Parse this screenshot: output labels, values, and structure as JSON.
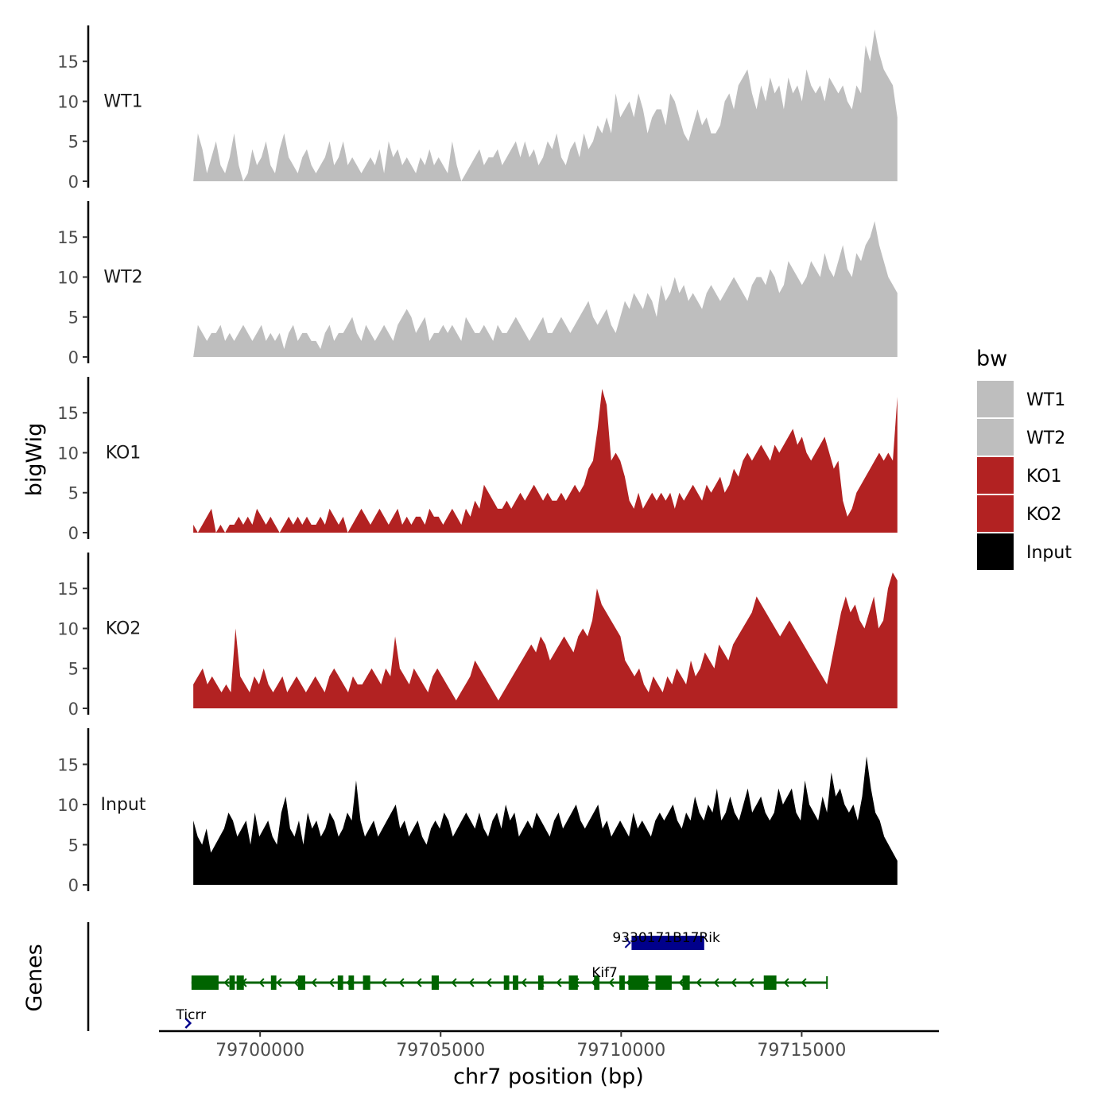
{
  "chart_data": {
    "type": "area",
    "ylabel": "bigWig",
    "genes_label": "Genes",
    "xlabel": "chr7 position (bp)",
    "xlim": [
      79697200,
      79718800
    ],
    "x_ticks": [
      79700000,
      79705000,
      79710000,
      79715000
    ],
    "x_tick_labels": [
      "79700000",
      "79705000",
      "79710000",
      "79715000"
    ],
    "ylim": [
      0,
      19.5
    ],
    "y_ticks": [
      0,
      5,
      10,
      15
    ],
    "y_tick_labels": [
      "0",
      "5",
      "10",
      "15"
    ],
    "signal_start": 79698150,
    "signal_end": 79717650,
    "legend": {
      "title": "bw",
      "position": "right",
      "entries": [
        {
          "label": "WT1",
          "color": "#bebebe"
        },
        {
          "label": "WT2",
          "color": "#bebebe"
        },
        {
          "label": "KO1",
          "color": "#b22222"
        },
        {
          "label": "KO2",
          "color": "#b22222"
        },
        {
          "label": "Input",
          "color": "#000000"
        }
      ]
    },
    "series": [
      {
        "name": "WT1",
        "color": "#bebebe",
        "values": [
          0,
          6,
          4,
          1,
          3,
          5,
          2,
          1,
          3,
          6,
          2,
          0,
          1,
          4,
          2,
          3,
          5,
          2,
          1,
          4,
          6,
          3,
          2,
          1,
          3,
          4,
          2,
          1,
          2,
          3,
          5,
          2,
          3,
          5,
          2,
          3,
          2,
          1,
          2,
          3,
          2,
          4,
          1,
          5,
          3,
          4,
          2,
          3,
          2,
          1,
          3,
          2,
          4,
          2,
          3,
          2,
          1,
          5,
          2,
          0,
          1,
          2,
          3,
          4,
          2,
          3,
          3,
          4,
          2,
          3,
          4,
          5,
          3,
          5,
          3,
          4,
          2,
          3,
          5,
          4,
          6,
          3,
          2,
          4,
          5,
          3,
          6,
          4,
          5,
          7,
          6,
          8,
          6,
          11,
          8,
          9,
          10,
          8,
          11,
          9,
          6,
          8,
          9,
          9,
          7,
          11,
          10,
          8,
          6,
          5,
          7,
          9,
          7,
          8,
          6,
          6,
          7,
          10,
          11,
          9,
          12,
          13,
          14,
          11,
          9,
          12,
          10,
          13,
          11,
          12,
          9,
          13,
          11,
          12,
          10,
          14,
          12,
          11,
          12,
          10,
          13,
          12,
          11,
          12,
          10,
          9,
          12,
          11,
          17,
          15,
          19,
          16,
          14,
          13,
          12,
          8
        ]
      },
      {
        "name": "WT2",
        "color": "#bebebe",
        "values": [
          0,
          4,
          3,
          2,
          3,
          3,
          4,
          2,
          3,
          2,
          3,
          4,
          3,
          2,
          3,
          4,
          2,
          3,
          2,
          3,
          1,
          3,
          4,
          2,
          3,
          3,
          2,
          2,
          1,
          3,
          4,
          2,
          3,
          3,
          4,
          5,
          3,
          2,
          4,
          3,
          2,
          3,
          4,
          3,
          2,
          4,
          5,
          6,
          5,
          3,
          4,
          5,
          2,
          3,
          3,
          4,
          3,
          4,
          3,
          2,
          5,
          4,
          3,
          3,
          4,
          3,
          2,
          4,
          3,
          3,
          4,
          5,
          4,
          3,
          2,
          3,
          4,
          5,
          3,
          3,
          4,
          5,
          4,
          3,
          4,
          5,
          6,
          7,
          5,
          4,
          5,
          6,
          4,
          3,
          5,
          7,
          6,
          8,
          7,
          6,
          8,
          7,
          5,
          9,
          7,
          8,
          10,
          8,
          9,
          7,
          8,
          7,
          6,
          8,
          9,
          8,
          7,
          8,
          9,
          10,
          9,
          8,
          7,
          9,
          10,
          10,
          9,
          11,
          10,
          8,
          9,
          12,
          11,
          10,
          9,
          10,
          12,
          11,
          10,
          13,
          11,
          10,
          12,
          14,
          11,
          10,
          13,
          12,
          14,
          15,
          17,
          14,
          12,
          10,
          9,
          8
        ]
      },
      {
        "name": "KO1",
        "color": "#b22222",
        "values": [
          1,
          0,
          1,
          2,
          3,
          0,
          1,
          0,
          1,
          1,
          2,
          1,
          2,
          1,
          3,
          2,
          1,
          2,
          1,
          0,
          1,
          2,
          1,
          2,
          1,
          2,
          1,
          1,
          2,
          1,
          3,
          2,
          1,
          2,
          0,
          1,
          2,
          3,
          2,
          1,
          2,
          3,
          2,
          1,
          2,
          3,
          1,
          2,
          1,
          2,
          2,
          1,
          3,
          2,
          2,
          1,
          2,
          3,
          2,
          1,
          3,
          2,
          4,
          3,
          6,
          5,
          4,
          3,
          3,
          4,
          3,
          4,
          5,
          4,
          5,
          6,
          5,
          4,
          5,
          4,
          4,
          5,
          4,
          5,
          6,
          5,
          6,
          8,
          9,
          13,
          18,
          16,
          9,
          10,
          9,
          7,
          4,
          3,
          5,
          3,
          4,
          5,
          4,
          5,
          4,
          5,
          3,
          5,
          4,
          5,
          6,
          5,
          4,
          6,
          5,
          6,
          7,
          5,
          6,
          8,
          7,
          9,
          10,
          9,
          10,
          11,
          10,
          9,
          11,
          10,
          11,
          12,
          13,
          11,
          12,
          10,
          9,
          10,
          11,
          12,
          10,
          8,
          9,
          4,
          2,
          3,
          5,
          6,
          7,
          8,
          9,
          10,
          9,
          10,
          9,
          17
        ]
      },
      {
        "name": "KO2",
        "color": "#b22222",
        "values": [
          3,
          4,
          5,
          3,
          4,
          3,
          2,
          3,
          2,
          10,
          4,
          3,
          2,
          4,
          3,
          5,
          3,
          2,
          3,
          4,
          2,
          3,
          4,
          3,
          2,
          3,
          4,
          3,
          2,
          4,
          5,
          4,
          3,
          2,
          4,
          3,
          3,
          4,
          5,
          4,
          3,
          5,
          4,
          9,
          5,
          4,
          3,
          5,
          4,
          3,
          2,
          4,
          5,
          4,
          3,
          2,
          1,
          2,
          3,
          4,
          6,
          5,
          4,
          3,
          2,
          1,
          2,
          3,
          4,
          5,
          6,
          7,
          8,
          7,
          9,
          8,
          6,
          7,
          8,
          9,
          8,
          7,
          9,
          10,
          9,
          11,
          15,
          13,
          12,
          11,
          10,
          9,
          6,
          5,
          4,
          5,
          3,
          2,
          4,
          3,
          2,
          4,
          3,
          5,
          4,
          3,
          6,
          4,
          5,
          7,
          6,
          5,
          8,
          7,
          6,
          8,
          9,
          10,
          11,
          12,
          14,
          13,
          12,
          11,
          10,
          9,
          10,
          11,
          10,
          9,
          8,
          7,
          6,
          5,
          4,
          3,
          6,
          9,
          12,
          14,
          12,
          13,
          11,
          10,
          12,
          14,
          10,
          11,
          15,
          17,
          16
        ]
      },
      {
        "name": "Input",
        "color": "#000000",
        "values": [
          8,
          6,
          5,
          7,
          4,
          5,
          6,
          7,
          9,
          8,
          6,
          7,
          8,
          5,
          9,
          6,
          7,
          8,
          6,
          5,
          9,
          11,
          7,
          6,
          8,
          5,
          9,
          7,
          8,
          6,
          7,
          9,
          8,
          6,
          7,
          9,
          8,
          13,
          8,
          6,
          7,
          8,
          6,
          7,
          8,
          9,
          10,
          7,
          8,
          6,
          7,
          8,
          6,
          5,
          7,
          8,
          7,
          9,
          8,
          6,
          7,
          8,
          9,
          8,
          7,
          9,
          7,
          6,
          8,
          9,
          7,
          10,
          8,
          9,
          6,
          7,
          8,
          7,
          9,
          8,
          7,
          6,
          8,
          9,
          7,
          8,
          9,
          10,
          8,
          7,
          8,
          9,
          10,
          7,
          8,
          6,
          7,
          8,
          7,
          6,
          9,
          7,
          8,
          7,
          6,
          8,
          9,
          8,
          9,
          10,
          8,
          7,
          9,
          8,
          11,
          9,
          8,
          10,
          9,
          12,
          8,
          9,
          11,
          9,
          8,
          10,
          12,
          9,
          10,
          11,
          9,
          8,
          9,
          12,
          10,
          11,
          12,
          9,
          8,
          13,
          10,
          9,
          8,
          11,
          9,
          14,
          11,
          12,
          10,
          9,
          10,
          8,
          11,
          16,
          12,
          9,
          8,
          6,
          5,
          4,
          3
        ]
      }
    ],
    "genes": [
      {
        "name": "Ticrr",
        "strand": "+",
        "color": "#00008b",
        "start": 79698000,
        "end": 79698150,
        "row": 2
      },
      {
        "name": "Kif7",
        "strand": "-",
        "color": "#006400",
        "start": 79698100,
        "end": 79715700,
        "row": 1,
        "exons": [
          [
            79698100,
            79698850
          ],
          [
            79699150,
            79699300
          ],
          [
            79699350,
            79699550
          ],
          [
            79700300,
            79700450
          ],
          [
            79701050,
            79701250
          ],
          [
            79702150,
            79702300
          ],
          [
            79702450,
            79702600
          ],
          [
            79702850,
            79703050
          ],
          [
            79704750,
            79704950
          ],
          [
            79706750,
            79706900
          ],
          [
            79707000,
            79707150
          ],
          [
            79707700,
            79707850
          ],
          [
            79708550,
            79708800
          ],
          [
            79709250,
            79709400
          ],
          [
            79709950,
            79710100
          ],
          [
            79710200,
            79710750
          ],
          [
            79710950,
            79711400
          ],
          [
            79711700,
            79711900
          ],
          [
            79713950,
            79714300
          ]
        ]
      },
      {
        "name": "9330171B17Rik",
        "strand": "+",
        "color": "#00008b",
        "start": 79710200,
        "end": 79712300,
        "row": 0
      }
    ]
  }
}
